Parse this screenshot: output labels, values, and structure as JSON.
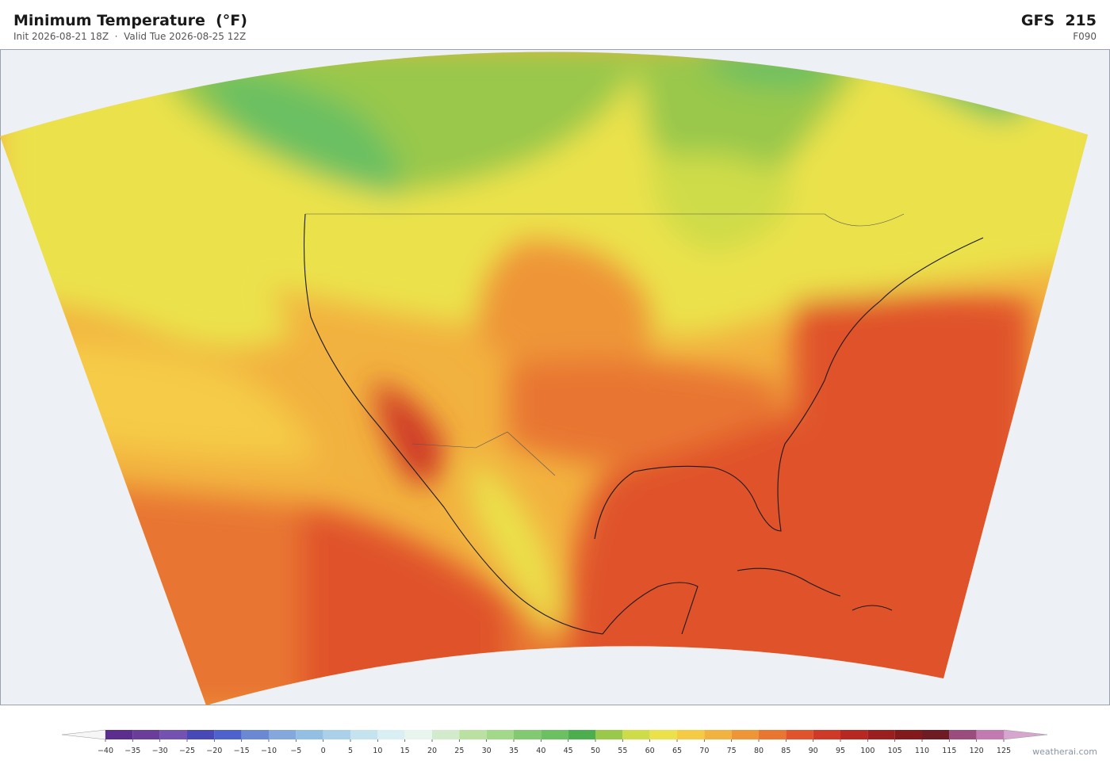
{
  "header": {
    "title": "Minimum Temperature  (°F)",
    "subtitle": "Init 2026-08-21 18Z  ·  Valid Tue 2026-08-25 12Z",
    "model": "GFS  215",
    "forecast_hour": "F090"
  },
  "colorbar": {
    "range": [
      -40,
      125
    ],
    "ticks": [
      {
        "value": -40,
        "label": "−40"
      },
      {
        "value": -35,
        "label": "−35"
      },
      {
        "value": -30,
        "label": "−30"
      },
      {
        "value": -25,
        "label": "−25"
      },
      {
        "value": -20,
        "label": "−20"
      },
      {
        "value": -15,
        "label": "−15"
      },
      {
        "value": -10,
        "label": "−10"
      },
      {
        "value": -5,
        "label": "−5"
      },
      0,
      5,
      10,
      15,
      20,
      25,
      30,
      35,
      40,
      45,
      50,
      55,
      60,
      65,
      70,
      75,
      80,
      85,
      90,
      95,
      100,
      105,
      110,
      115,
      120,
      125
    ],
    "colors": [
      "#5b2d8f",
      "#6b3d9b",
      "#7452b2",
      "#4848b6",
      "#4d62cc",
      "#6a88d4",
      "#84a7dc",
      "#93bfe2",
      "#aad1e9",
      "#c5e3ef",
      "#d9eff3",
      "#e8f5ee",
      "#d2ebcd",
      "#bae1a2",
      "#a2d88a",
      "#82c972",
      "#6bc062",
      "#4cae4e",
      "#99c84b",
      "#cfdc49",
      "#ebe24b",
      "#f5cb46",
      "#f2b23f",
      "#ee9537",
      "#e87631",
      "#e0532b",
      "#cf3a28",
      "#b72822",
      "#9b1f1f",
      "#821a1c",
      "#6f1b24",
      "#9a4c7d",
      "#c17bb1",
      "#d9a9d1"
    ],
    "under_color": "#f6f6f6",
    "over_color": "#d7a6cf"
  },
  "footer": {
    "credit": "weatherai.com"
  }
}
